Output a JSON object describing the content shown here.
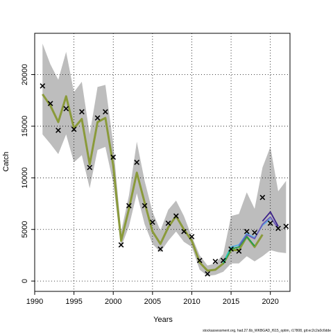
{
  "chart_data": {
    "type": "line",
    "xlabel": "Years",
    "ylabel": "Catch",
    "xlim": [
      1990,
      2022.5
    ],
    "ylim": [
      -1000,
      24000
    ],
    "x_ticks": [
      1990,
      1995,
      2000,
      2005,
      2010,
      2015,
      2020
    ],
    "y_ticks": [
      0,
      5000,
      10000,
      15000,
      20000
    ],
    "grid": true,
    "footer_text": "stockassessment.org, had.27.6b_WKBGAD_f615_optim, r17808, git:ec2c2a0c6dde",
    "confidence_band": {
      "x": [
        1991,
        1992,
        1993,
        1994,
        1995,
        1996,
        1997,
        1998,
        1999,
        2000,
        2001,
        2002,
        2003,
        2004,
        2005,
        2006,
        2007,
        2008,
        2009,
        2010,
        2011,
        2012,
        2013,
        2014,
        2015,
        2016,
        2017,
        2018,
        2019,
        2020,
        2021,
        2022
      ],
      "lower": [
        14200,
        13300,
        12300,
        14200,
        11500,
        12200,
        9000,
        12700,
        13000,
        9500,
        3300,
        5300,
        8500,
        5500,
        3600,
        2800,
        3900,
        4800,
        3800,
        3300,
        1100,
        500,
        600,
        900,
        1700,
        1700,
        2400,
        1900,
        2400,
        3000,
        2800,
        2700
      ],
      "upper": [
        23000,
        21000,
        19500,
        22200,
        18300,
        19300,
        14200,
        18800,
        19000,
        13300,
        4800,
        8300,
        13500,
        9700,
        6700,
        4900,
        6900,
        7800,
        6300,
        4300,
        2500,
        1500,
        1700,
        2600,
        6300,
        6500,
        8600,
        7000,
        11000,
        13000,
        8700,
        9700
      ]
    },
    "series": [
      {
        "color": "#8a9a3a",
        "x": [
          1991,
          1992,
          1993,
          1994,
          1995,
          1996,
          1997,
          1998,
          1999,
          2000,
          2001,
          2002,
          2003,
          2004,
          2005,
          2006,
          2007,
          2008,
          2009,
          2010,
          2011,
          2012,
          2013,
          2014,
          2015,
          2016,
          2017,
          2018,
          2019
        ],
        "y": [
          18100,
          17000,
          15400,
          17900,
          14800,
          15700,
          11300,
          15400,
          15800,
          11200,
          3900,
          7000,
          10500,
          7600,
          4800,
          3600,
          5200,
          6300,
          5000,
          3900,
          1800,
          1000,
          1100,
          1700,
          3000,
          3000,
          4300,
          3300,
          4500
        ]
      },
      {
        "color": "#1f9e4a",
        "x": [
          2014,
          2015,
          2016,
          2017,
          2018
        ],
        "y": [
          1700,
          3100,
          3300,
          4300,
          3400
        ]
      },
      {
        "color": "#2ec4b6",
        "x": [
          2014,
          2015,
          2016,
          2017
        ],
        "y": [
          1800,
          3300,
          3500,
          4500
        ]
      },
      {
        "color": "#5ab3e6",
        "x": [
          2015,
          2016,
          2017,
          2018,
          2019,
          2020
        ],
        "y": [
          3300,
          3500,
          4600,
          4200,
          5400,
          6000
        ]
      },
      {
        "color": "#6b5ab8",
        "x": [
          2016,
          2017,
          2018,
          2019,
          2020,
          2021
        ],
        "y": [
          3400,
          4500,
          4100,
          5500,
          6200,
          5100
        ]
      },
      {
        "color": "#3b1f8a",
        "x": [
          2019,
          2020,
          2021
        ],
        "y": [
          5800,
          6700,
          5300
        ]
      }
    ],
    "observations": {
      "x": [
        1991,
        1992,
        1993,
        1994,
        1995,
        1996,
        1997,
        1998,
        1999,
        2000,
        2001,
        2002,
        2003,
        2004,
        2005,
        2006,
        2007,
        2008,
        2009,
        2010,
        2011,
        2012,
        2013,
        2014,
        2015,
        2016,
        2017,
        2018,
        2019,
        2020,
        2021,
        2022
      ],
      "y": [
        18900,
        17200,
        14600,
        16700,
        14700,
        16400,
        11000,
        15800,
        16400,
        12000,
        3500,
        7300,
        11500,
        7300,
        5700,
        3100,
        5600,
        6300,
        4800,
        4300,
        2000,
        700,
        1900,
        2000,
        3100,
        2900,
        4800,
        4700,
        8100,
        5600,
        5100,
        5300
      ]
    }
  }
}
